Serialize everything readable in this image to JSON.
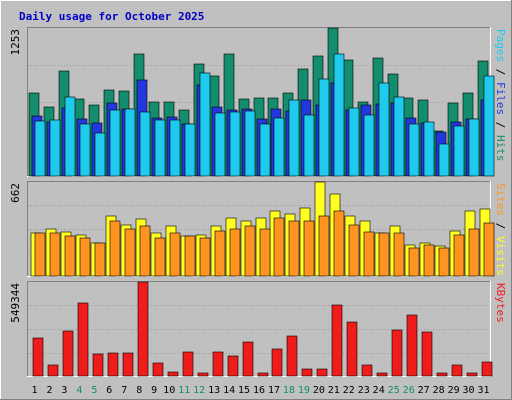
{
  "chart_data": {
    "type": "bar",
    "title": "Daily usage for October 2025",
    "days": [
      "1",
      "2",
      "3",
      "4",
      "5",
      "6",
      "7",
      "8",
      "9",
      "10",
      "11",
      "12",
      "13",
      "14",
      "15",
      "16",
      "17",
      "18",
      "19",
      "20",
      "21",
      "22",
      "23",
      "24",
      "25",
      "26",
      "27",
      "28",
      "29",
      "30",
      "31"
    ],
    "weekend_days": [
      "4",
      "5",
      "11",
      "12",
      "18",
      "19",
      "25",
      "26"
    ],
    "panels": [
      {
        "id": "pages-files-hits",
        "ylabel_max": "1253",
        "ymax": 1253,
        "right_label_parts": [
          "Pages",
          "Files",
          "Hits"
        ],
        "series": [
          {
            "name": "Hits",
            "color": "#138D6D",
            "values": [
              705,
              580,
              890,
              650,
              600,
              730,
              720,
              1030,
              625,
              625,
              560,
              945,
              850,
              1030,
              650,
              660,
              660,
              700,
              910,
              1015,
              1253,
              980,
              630,
              1000,
              860,
              660,
              645,
              380,
              620,
              705,
              975
            ]
          },
          {
            "name": "Files",
            "color": "#2238DD",
            "values": [
              505,
              460,
              575,
              485,
              450,
              620,
              570,
              810,
              490,
              500,
              440,
              770,
              580,
              560,
              570,
              480,
              570,
              550,
              640,
              600,
              790,
              560,
              600,
              610,
              620,
              490,
              445,
              375,
              455,
              480,
              640
            ]
          },
          {
            "name": "Pages",
            "color": "#1ECBEE",
            "values": [
              465,
              475,
              665,
              440,
              360,
              560,
              570,
              540,
              470,
              475,
              440,
              875,
              535,
              540,
              550,
              440,
              490,
              640,
              520,
              820,
              1030,
              575,
              520,
              790,
              670,
              440,
              460,
              270,
              420,
              480,
              850
            ]
          }
        ]
      },
      {
        "id": "sites-visits",
        "ylabel_max": "662",
        "ymax": 662,
        "right_label_parts": [
          "Sites",
          "Visits"
        ],
        "series": [
          {
            "name": "Visits",
            "color": "#FFFF21",
            "values": [
              300,
              330,
              310,
              290,
              230,
              420,
              360,
              400,
              300,
              350,
              280,
              290,
              350,
              410,
              390,
              410,
              460,
              440,
              480,
              662,
              580,
              420,
              390,
              300,
              350,
              220,
              230,
              210,
              320,
              460,
              470
            ]
          },
          {
            "name": "Sites",
            "color": "#FF9421",
            "values": [
              300,
              300,
              280,
              270,
              230,
              390,
              330,
              350,
              270,
              300,
              280,
              270,
              320,
              330,
              350,
              330,
              410,
              390,
              390,
              420,
              460,
              360,
              310,
              300,
              300,
              200,
              220,
              200,
              290,
              330,
              370
            ]
          }
        ]
      },
      {
        "id": "kbytes",
        "ylabel_max": "549344",
        "ymax": 549344,
        "right_label_parts": [
          "KBytes"
        ],
        "series": [
          {
            "name": "KBytes",
            "color": "#EF1C1C",
            "values": [
              221000,
              62000,
              263000,
              429000,
              130000,
              133000,
              133000,
              549344,
              77000,
              26000,
              138000,
              18000,
              143000,
              119000,
              198000,
              16000,
              157000,
              235000,
              38000,
              41000,
              413000,
              315000,
              62000,
              18000,
              268000,
              355000,
              258000,
              18000,
              63000,
              20000,
              80000
            ]
          }
        ]
      }
    ]
  }
}
